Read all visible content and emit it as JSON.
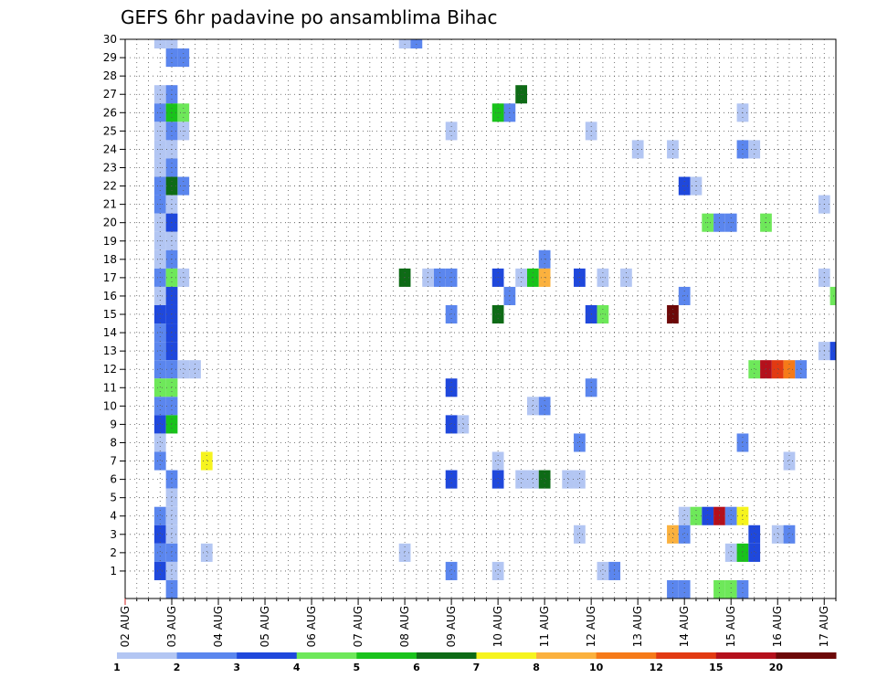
{
  "chart_data": {
    "type": "heatmap",
    "title": "GEFS 6hr padavine po ansamblima Bihac",
    "xlabel": "",
    "ylabel": "",
    "x_tick_labels": [
      "02 AUG",
      "03 AUG",
      "04 AUG",
      "05 AUG",
      "06 AUG",
      "07 AUG",
      "08 AUG",
      "09 AUG",
      "10 AUG",
      "11 AUG",
      "12 AUG",
      "13 AUG",
      "14 AUG",
      "15 AUG",
      "16 AUG",
      "17 AUG"
    ],
    "y_tick_labels": [
      "1",
      "2",
      "3",
      "4",
      "5",
      "6",
      "7",
      "8",
      "9",
      "10",
      "11",
      "12",
      "13",
      "14",
      "15",
      "16",
      "17",
      "18",
      "19",
      "20",
      "21",
      "22",
      "23",
      "24",
      "25",
      "26",
      "27",
      "28",
      "29",
      "30"
    ],
    "xlim": [
      0,
      61
    ],
    "ylim": [
      0,
      30
    ],
    "x_step": "6hr",
    "grid": true,
    "colorbar": {
      "labels": [
        "1",
        "2",
        "3",
        "4",
        "5",
        "6",
        "7",
        "8",
        "10",
        "12",
        "15",
        "20"
      ],
      "colors": [
        "#b3c6f3",
        "#5b86ee",
        "#1f48dc",
        "#6ee85a",
        "#19c31b",
        "#0e6b16",
        "#f6f41e",
        "#fbb13e",
        "#f67a18",
        "#e23a12",
        "#b4101c",
        "#6d0808"
      ]
    },
    "cells": [
      {
        "x": 3,
        "y": 30,
        "level": 1
      },
      {
        "x": 4,
        "y": 30,
        "level": 1
      },
      {
        "x": 24,
        "y": 30,
        "level": 1
      },
      {
        "x": 25,
        "y": 30,
        "level": 2
      },
      {
        "x": 4,
        "y": 29,
        "level": 2
      },
      {
        "x": 5,
        "y": 29,
        "level": 2
      },
      {
        "x": 3,
        "y": 27,
        "level": 1
      },
      {
        "x": 4,
        "y": 27,
        "level": 2
      },
      {
        "x": 34,
        "y": 27,
        "level": 6
      },
      {
        "x": 3,
        "y": 26,
        "level": 2
      },
      {
        "x": 4,
        "y": 26,
        "level": 5
      },
      {
        "x": 5,
        "y": 26,
        "level": 4
      },
      {
        "x": 32,
        "y": 26,
        "level": 5
      },
      {
        "x": 33,
        "y": 26,
        "level": 2
      },
      {
        "x": 53,
        "y": 26,
        "level": 1
      },
      {
        "x": 3,
        "y": 25,
        "level": 1
      },
      {
        "x": 4,
        "y": 25,
        "level": 2
      },
      {
        "x": 5,
        "y": 25,
        "level": 1
      },
      {
        "x": 28,
        "y": 25,
        "level": 1
      },
      {
        "x": 40,
        "y": 25,
        "level": 1
      },
      {
        "x": 3,
        "y": 24,
        "level": 1
      },
      {
        "x": 4,
        "y": 24,
        "level": 1
      },
      {
        "x": 44,
        "y": 24,
        "level": 1
      },
      {
        "x": 47,
        "y": 24,
        "level": 1
      },
      {
        "x": 53,
        "y": 24,
        "level": 2
      },
      {
        "x": 54,
        "y": 24,
        "level": 1
      },
      {
        "x": 3,
        "y": 23,
        "level": 1
      },
      {
        "x": 4,
        "y": 23,
        "level": 2
      },
      {
        "x": 3,
        "y": 22,
        "level": 2
      },
      {
        "x": 4,
        "y": 22,
        "level": 6
      },
      {
        "x": 5,
        "y": 22,
        "level": 2
      },
      {
        "x": 48,
        "y": 22,
        "level": 3
      },
      {
        "x": 49,
        "y": 22,
        "level": 1
      },
      {
        "x": 3,
        "y": 21,
        "level": 2
      },
      {
        "x": 4,
        "y": 21,
        "level": 1
      },
      {
        "x": 60,
        "y": 21,
        "level": 1
      },
      {
        "x": 3,
        "y": 20,
        "level": 1
      },
      {
        "x": 4,
        "y": 20,
        "level": 3
      },
      {
        "x": 50,
        "y": 20,
        "level": 4
      },
      {
        "x": 51,
        "y": 20,
        "level": 2
      },
      {
        "x": 52,
        "y": 20,
        "level": 2
      },
      {
        "x": 55,
        "y": 20,
        "level": 4
      },
      {
        "x": 3,
        "y": 19,
        "level": 1
      },
      {
        "x": 4,
        "y": 19,
        "level": 1
      },
      {
        "x": 3,
        "y": 18,
        "level": 1
      },
      {
        "x": 4,
        "y": 18,
        "level": 2
      },
      {
        "x": 36,
        "y": 18,
        "level": 2
      },
      {
        "x": 3,
        "y": 17,
        "level": 2
      },
      {
        "x": 4,
        "y": 17,
        "level": 4
      },
      {
        "x": 5,
        "y": 17,
        "level": 1
      },
      {
        "x": 24,
        "y": 17,
        "level": 6
      },
      {
        "x": 26,
        "y": 17,
        "level": 1
      },
      {
        "x": 27,
        "y": 17,
        "level": 2
      },
      {
        "x": 28,
        "y": 17,
        "level": 2
      },
      {
        "x": 32,
        "y": 17,
        "level": 3
      },
      {
        "x": 34,
        "y": 17,
        "level": 1
      },
      {
        "x": 35,
        "y": 17,
        "level": 5
      },
      {
        "x": 36,
        "y": 17,
        "level": 8
      },
      {
        "x": 39,
        "y": 17,
        "level": 3
      },
      {
        "x": 41,
        "y": 17,
        "level": 1
      },
      {
        "x": 43,
        "y": 17,
        "level": 1
      },
      {
        "x": 60,
        "y": 17,
        "level": 1
      },
      {
        "x": 3,
        "y": 16,
        "level": 1
      },
      {
        "x": 4,
        "y": 16,
        "level": 3
      },
      {
        "x": 33,
        "y": 16,
        "level": 2
      },
      {
        "x": 48,
        "y": 16,
        "level": 2
      },
      {
        "x": 61,
        "y": 16,
        "level": 4
      },
      {
        "x": 3,
        "y": 15,
        "level": 3
      },
      {
        "x": 4,
        "y": 15,
        "level": 3
      },
      {
        "x": 28,
        "y": 15,
        "level": 2
      },
      {
        "x": 32,
        "y": 15,
        "level": 6
      },
      {
        "x": 40,
        "y": 15,
        "level": 3
      },
      {
        "x": 41,
        "y": 15,
        "level": 4
      },
      {
        "x": 47,
        "y": 15,
        "level": 12
      },
      {
        "x": 3,
        "y": 14,
        "level": 2
      },
      {
        "x": 4,
        "y": 14,
        "level": 3
      },
      {
        "x": 3,
        "y": 13,
        "level": 2
      },
      {
        "x": 4,
        "y": 13,
        "level": 3
      },
      {
        "x": 60,
        "y": 13,
        "level": 1
      },
      {
        "x": 61,
        "y": 13,
        "level": 3
      },
      {
        "x": 3,
        "y": 12,
        "level": 2
      },
      {
        "x": 4,
        "y": 12,
        "level": 2
      },
      {
        "x": 5,
        "y": 12,
        "level": 1
      },
      {
        "x": 6,
        "y": 12,
        "level": 1
      },
      {
        "x": 54,
        "y": 12,
        "level": 4
      },
      {
        "x": 55,
        "y": 12,
        "level": 11
      },
      {
        "x": 56,
        "y": 12,
        "level": 10
      },
      {
        "x": 57,
        "y": 12,
        "level": 9
      },
      {
        "x": 58,
        "y": 12,
        "level": 2
      },
      {
        "x": 3,
        "y": 11,
        "level": 4
      },
      {
        "x": 4,
        "y": 11,
        "level": 4
      },
      {
        "x": 28,
        "y": 11,
        "level": 3
      },
      {
        "x": 40,
        "y": 11,
        "level": 2
      },
      {
        "x": 3,
        "y": 10,
        "level": 2
      },
      {
        "x": 4,
        "y": 10,
        "level": 2
      },
      {
        "x": 35,
        "y": 10,
        "level": 1
      },
      {
        "x": 36,
        "y": 10,
        "level": 2
      },
      {
        "x": 3,
        "y": 9,
        "level": 3
      },
      {
        "x": 4,
        "y": 9,
        "level": 5
      },
      {
        "x": 28,
        "y": 9,
        "level": 3
      },
      {
        "x": 29,
        "y": 9,
        "level": 1
      },
      {
        "x": 3,
        "y": 8,
        "level": 1
      },
      {
        "x": 39,
        "y": 8,
        "level": 2
      },
      {
        "x": 53,
        "y": 8,
        "level": 2
      },
      {
        "x": 3,
        "y": 7,
        "level": 2
      },
      {
        "x": 7,
        "y": 7,
        "level": 7
      },
      {
        "x": 32,
        "y": 7,
        "level": 1
      },
      {
        "x": 57,
        "y": 7,
        "level": 1
      },
      {
        "x": 4,
        "y": 6,
        "level": 2
      },
      {
        "x": 28,
        "y": 6,
        "level": 3
      },
      {
        "x": 32,
        "y": 6,
        "level": 3
      },
      {
        "x": 34,
        "y": 6,
        "level": 1
      },
      {
        "x": 35,
        "y": 6,
        "level": 1
      },
      {
        "x": 36,
        "y": 6,
        "level": 6
      },
      {
        "x": 38,
        "y": 6,
        "level": 1
      },
      {
        "x": 39,
        "y": 6,
        "level": 1
      },
      {
        "x": 4,
        "y": 5,
        "level": 1
      },
      {
        "x": 3,
        "y": 4,
        "level": 2
      },
      {
        "x": 4,
        "y": 4,
        "level": 1
      },
      {
        "x": 48,
        "y": 4,
        "level": 1
      },
      {
        "x": 49,
        "y": 4,
        "level": 4
      },
      {
        "x": 50,
        "y": 4,
        "level": 3
      },
      {
        "x": 51,
        "y": 4,
        "level": 11
      },
      {
        "x": 52,
        "y": 4,
        "level": 2
      },
      {
        "x": 53,
        "y": 4,
        "level": 7
      },
      {
        "x": 3,
        "y": 3,
        "level": 3
      },
      {
        "x": 4,
        "y": 3,
        "level": 1
      },
      {
        "x": 39,
        "y": 3,
        "level": 1
      },
      {
        "x": 47,
        "y": 3,
        "level": 8
      },
      {
        "x": 48,
        "y": 3,
        "level": 2
      },
      {
        "x": 54,
        "y": 3,
        "level": 3
      },
      {
        "x": 56,
        "y": 3,
        "level": 1
      },
      {
        "x": 57,
        "y": 3,
        "level": 2
      },
      {
        "x": 3,
        "y": 2,
        "level": 2
      },
      {
        "x": 4,
        "y": 2,
        "level": 2
      },
      {
        "x": 7,
        "y": 2,
        "level": 1
      },
      {
        "x": 24,
        "y": 2,
        "level": 1
      },
      {
        "x": 52,
        "y": 2,
        "level": 1
      },
      {
        "x": 53,
        "y": 2,
        "level": 5
      },
      {
        "x": 54,
        "y": 2,
        "level": 3
      },
      {
        "x": 3,
        "y": 1,
        "level": 3
      },
      {
        "x": 4,
        "y": 1,
        "level": 1
      },
      {
        "x": 28,
        "y": 1,
        "level": 2
      },
      {
        "x": 32,
        "y": 1,
        "level": 1
      },
      {
        "x": 41,
        "y": 1,
        "level": 1
      },
      {
        "x": 42,
        "y": 1,
        "level": 2
      },
      {
        "x": 4,
        "y": 0,
        "level": 2
      },
      {
        "x": 47,
        "y": 0,
        "level": 2
      },
      {
        "x": 48,
        "y": 0,
        "level": 2
      },
      {
        "x": 51,
        "y": 0,
        "level": 4
      },
      {
        "x": 52,
        "y": 0,
        "level": 4
      },
      {
        "x": 53,
        "y": 0,
        "level": 2
      }
    ]
  }
}
